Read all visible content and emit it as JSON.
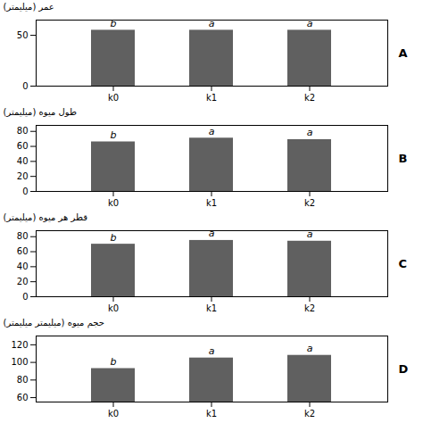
{
  "chart_data": [
    {
      "type": "bar",
      "title": "A",
      "categories": [
        "k0",
        "k1",
        "k2"
      ],
      "values": [
        55,
        55,
        55
      ],
      "annotations": [
        "b",
        "a",
        "a"
      ],
      "color": "#606060",
      "ylim": [
        0,
        65
      ],
      "yticks": [
        0,
        50
      ],
      "ylabel": "عمر (میلیمتر)"
    },
    {
      "type": "bar",
      "title": "B",
      "categories": [
        "k0",
        "k1",
        "k2"
      ],
      "values": [
        66,
        71,
        69
      ],
      "annotations": [
        "b",
        "a",
        "a"
      ],
      "color": "#606060",
      "ylim": [
        0,
        88
      ],
      "yticks": [
        0,
        20,
        40,
        60,
        80
      ],
      "ylabel": "طول میوه (میلیمتر)"
    },
    {
      "type": "bar",
      "title": "C",
      "categories": [
        "k0",
        "k1",
        "k2"
      ],
      "values": [
        70,
        75,
        74
      ],
      "annotations": [
        "b",
        "a",
        "a"
      ],
      "color": "#606060",
      "ylim": [
        0,
        88
      ],
      "yticks": [
        0,
        20,
        40,
        60,
        80
      ],
      "ylabel": "قطر هر میوه (میلیمتر)"
    },
    {
      "type": "bar",
      "title": "D",
      "categories": [
        "k0",
        "k1",
        "k2"
      ],
      "values": [
        93,
        105,
        108
      ],
      "annotations": [
        "b",
        "a",
        "a"
      ],
      "color": "#606060",
      "ylim": [
        55,
        130
      ],
      "yticks": [
        60,
        80,
        100,
        120
      ],
      "ylabel": "حجم میوه (میلیمتر میلیمتر)"
    }
  ]
}
